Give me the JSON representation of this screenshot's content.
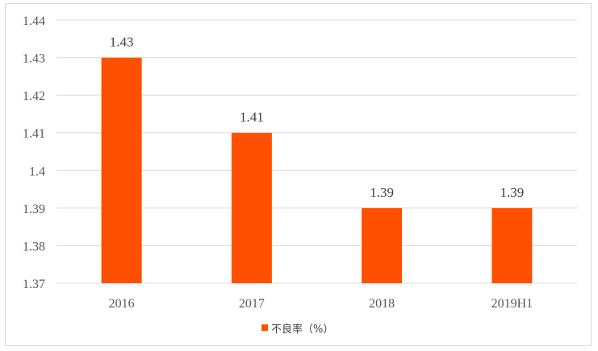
{
  "chart_data": {
    "type": "bar",
    "categories": [
      "2016",
      "2017",
      "2018",
      "2019H1"
    ],
    "series": [
      {
        "name": "不良率（%）",
        "values": [
          1.43,
          1.41,
          1.39,
          1.39
        ],
        "color": "#FF5000"
      }
    ],
    "data_labels": [
      "1.43",
      "1.41",
      "1.39",
      "1.39"
    ],
    "y_tick_labels": [
      "1.37",
      "1.38",
      "1.39",
      "1.4",
      "1.41",
      "1.42",
      "1.43",
      "1.44"
    ],
    "ylim": [
      1.37,
      1.44
    ],
    "ystep": 0.01,
    "grid": true,
    "legend_position": "bottom",
    "title": "",
    "xlabel": "",
    "ylabel": ""
  }
}
